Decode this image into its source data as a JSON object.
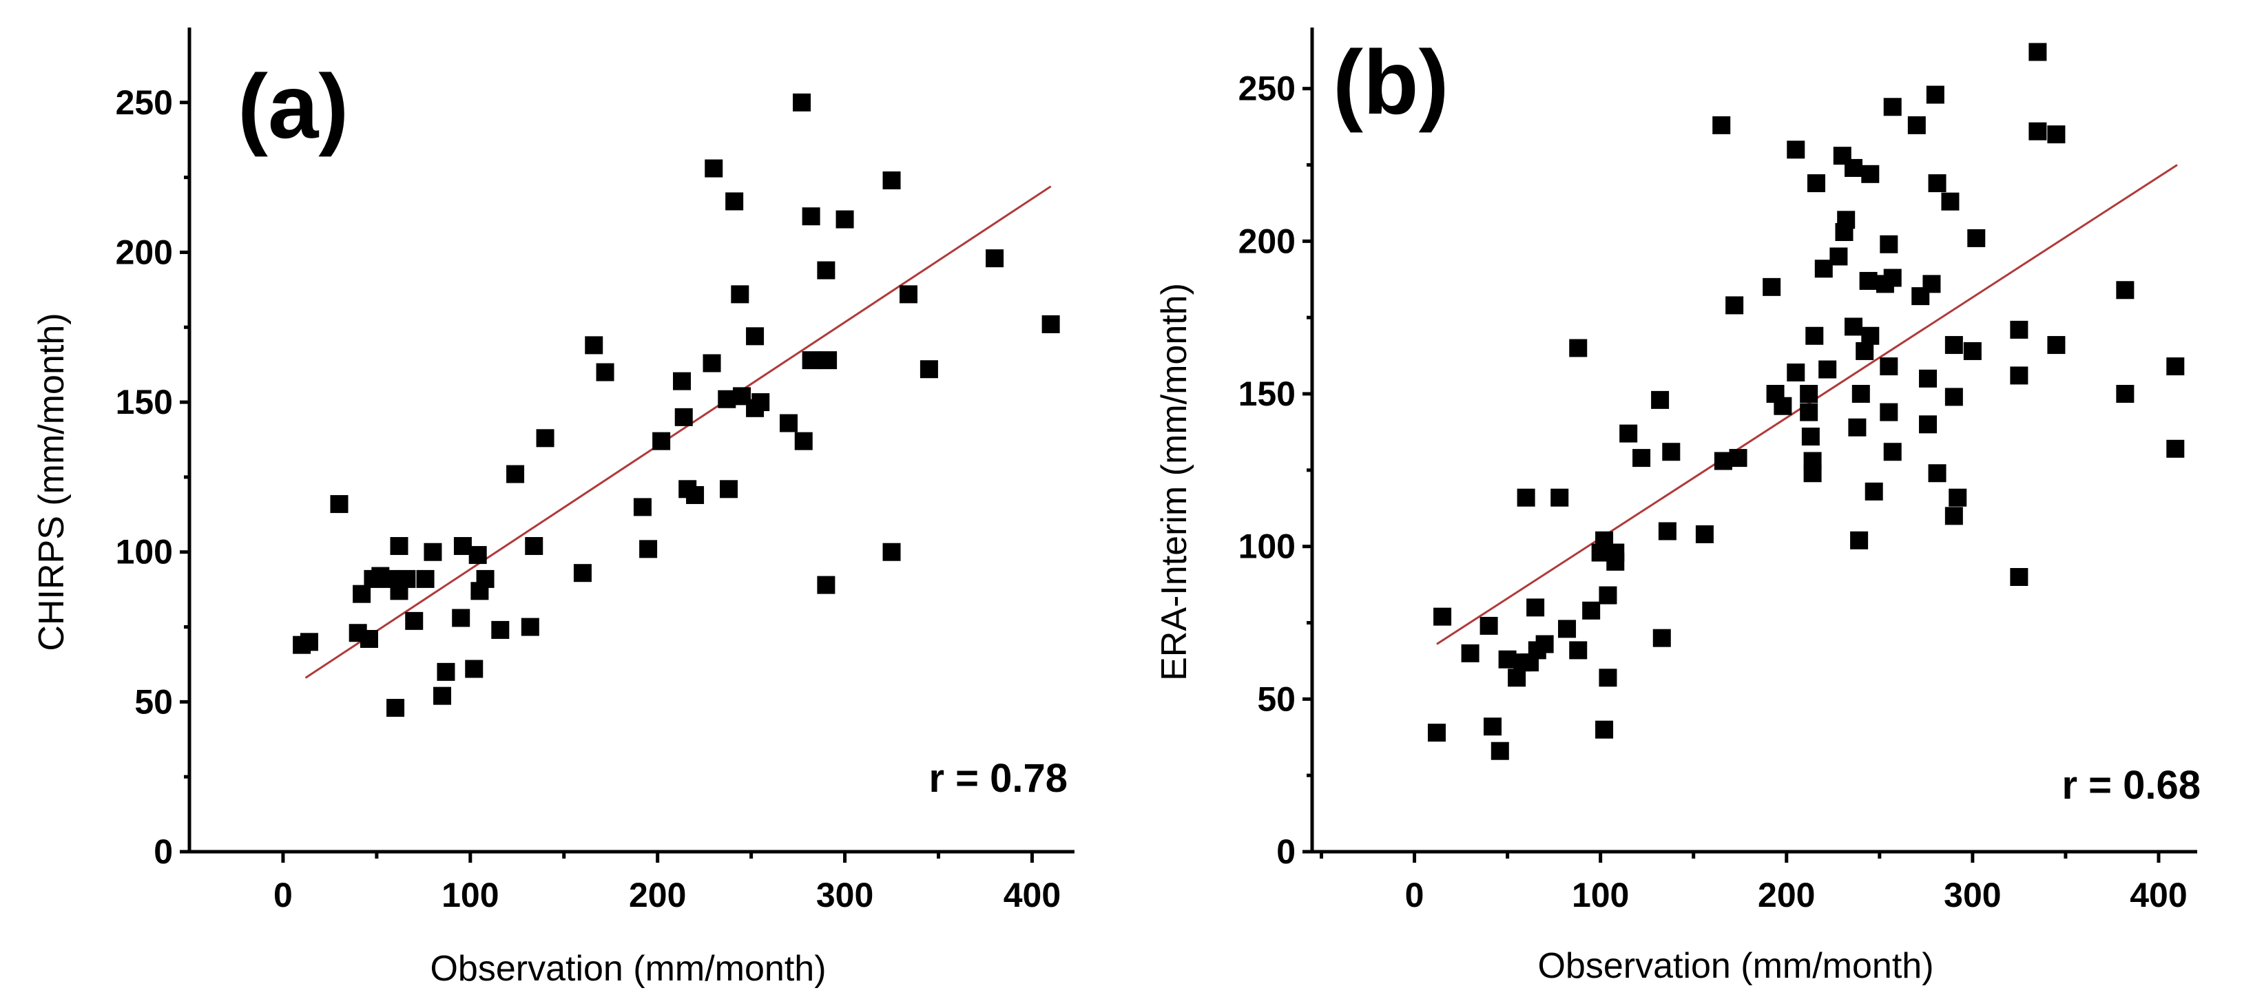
{
  "chart_data": [
    {
      "type": "scatter",
      "panel_label": "(a)",
      "xlabel": "Observation (mm/month)",
      "ylabel": "CHIRPS (mm/month)",
      "xlim": [
        -50,
        430
      ],
      "ylim": [
        0,
        275
      ],
      "x_ticks": [
        0,
        100,
        200,
        300,
        400
      ],
      "y_ticks": [
        0,
        50,
        100,
        150,
        200,
        250
      ],
      "annotation": "r = 0.78",
      "fit_line": {
        "x": [
          12,
          410
        ],
        "y": [
          58,
          222
        ]
      },
      "points": [
        [
          10,
          69
        ],
        [
          14,
          70
        ],
        [
          30,
          116
        ],
        [
          40,
          73
        ],
        [
          42,
          86
        ],
        [
          46,
          71
        ],
        [
          48,
          91
        ],
        [
          52,
          92
        ],
        [
          57,
          91
        ],
        [
          60,
          48
        ],
        [
          62,
          102
        ],
        [
          62,
          87
        ],
        [
          66,
          91
        ],
        [
          70,
          77
        ],
        [
          76,
          91
        ],
        [
          80,
          100
        ],
        [
          85,
          52
        ],
        [
          87,
          60
        ],
        [
          95,
          78
        ],
        [
          96,
          102
        ],
        [
          102,
          61
        ],
        [
          104,
          99
        ],
        [
          105,
          87
        ],
        [
          108,
          91
        ],
        [
          116,
          74
        ],
        [
          124,
          126
        ],
        [
          132,
          75
        ],
        [
          134,
          102
        ],
        [
          140,
          138
        ],
        [
          160,
          93
        ],
        [
          166,
          169
        ],
        [
          172,
          160
        ],
        [
          192,
          115
        ],
        [
          195,
          101
        ],
        [
          202,
          137
        ],
        [
          213,
          157
        ],
        [
          214,
          145
        ],
        [
          216,
          121
        ],
        [
          220,
          119
        ],
        [
          229,
          163
        ],
        [
          230,
          228
        ],
        [
          237,
          151
        ],
        [
          238,
          121
        ],
        [
          241,
          217
        ],
        [
          244,
          186
        ],
        [
          245,
          152
        ],
        [
          252,
          172
        ],
        [
          252,
          148
        ],
        [
          255,
          150
        ],
        [
          270,
          143
        ],
        [
          277,
          250
        ],
        [
          278,
          137
        ],
        [
          282,
          212
        ],
        [
          282,
          164
        ],
        [
          290,
          194
        ],
        [
          290,
          89
        ],
        [
          291,
          164
        ],
        [
          300,
          211
        ],
        [
          325,
          224
        ],
        [
          325,
          100
        ],
        [
          334,
          186
        ],
        [
          345,
          161
        ],
        [
          380,
          198
        ],
        [
          410,
          176
        ]
      ]
    },
    {
      "type": "scatter",
      "panel_label": "(b)",
      "xlabel": "Observation (mm/month)",
      "ylabel": "ERA-Interim (mm/month)",
      "xlim": [
        -55,
        430
      ],
      "ylim": [
        0,
        270
      ],
      "x_ticks": [
        0,
        100,
        200,
        300,
        400
      ],
      "y_ticks": [
        0,
        50,
        100,
        150,
        200,
        250
      ],
      "annotation": "r = 0.68",
      "fit_line": {
        "x": [
          12,
          410
        ],
        "y": [
          68,
          225
        ]
      },
      "points": [
        [
          12,
          39
        ],
        [
          15,
          77
        ],
        [
          30,
          65
        ],
        [
          40,
          74
        ],
        [
          42,
          41
        ],
        [
          46,
          33
        ],
        [
          50,
          63
        ],
        [
          55,
          57
        ],
        [
          58,
          62
        ],
        [
          60,
          116
        ],
        [
          62,
          62
        ],
        [
          65,
          80
        ],
        [
          66,
          66
        ],
        [
          70,
          68
        ],
        [
          78,
          116
        ],
        [
          82,
          73
        ],
        [
          88,
          66
        ],
        [
          88,
          165
        ],
        [
          95,
          79
        ],
        [
          100,
          98
        ],
        [
          102,
          40
        ],
        [
          102,
          102
        ],
        [
          104,
          84
        ],
        [
          104,
          57
        ],
        [
          108,
          95
        ],
        [
          108,
          98
        ],
        [
          115,
          137
        ],
        [
          122,
          129
        ],
        [
          132,
          148
        ],
        [
          133,
          70
        ],
        [
          136,
          105
        ],
        [
          138,
          131
        ],
        [
          156,
          104
        ],
        [
          165,
          238
        ],
        [
          166,
          128
        ],
        [
          172,
          179
        ],
        [
          174,
          129
        ],
        [
          192,
          185
        ],
        [
          194,
          150
        ],
        [
          198,
          146
        ],
        [
          205,
          230
        ],
        [
          205,
          157
        ],
        [
          212,
          144
        ],
        [
          212,
          150
        ],
        [
          213,
          136
        ],
        [
          214,
          124
        ],
        [
          214,
          128
        ],
        [
          215,
          169
        ],
        [
          216,
          219
        ],
        [
          220,
          191
        ],
        [
          222,
          158
        ],
        [
          228,
          195
        ],
        [
          230,
          228
        ],
        [
          231,
          203
        ],
        [
          232,
          207
        ],
        [
          236,
          224
        ],
        [
          236,
          172
        ],
        [
          238,
          139
        ],
        [
          239,
          102
        ],
        [
          240,
          150
        ],
        [
          242,
          164
        ],
        [
          244,
          187
        ],
        [
          245,
          222
        ],
        [
          245,
          169
        ],
        [
          247,
          118
        ],
        [
          253,
          186
        ],
        [
          255,
          199
        ],
        [
          255,
          159
        ],
        [
          255,
          144
        ],
        [
          257,
          188
        ],
        [
          257,
          244
        ],
        [
          257,
          131
        ],
        [
          270,
          238
        ],
        [
          272,
          182
        ],
        [
          276,
          155
        ],
        [
          276,
          140
        ],
        [
          278,
          186
        ],
        [
          280,
          248
        ],
        [
          281,
          219
        ],
        [
          281,
          124
        ],
        [
          288,
          213
        ],
        [
          290,
          166
        ],
        [
          290,
          149
        ],
        [
          290,
          110
        ],
        [
          292,
          116
        ],
        [
          300,
          164
        ],
        [
          302,
          201
        ],
        [
          325,
          171
        ],
        [
          325,
          156
        ],
        [
          325,
          90
        ],
        [
          335,
          262
        ],
        [
          335,
          236
        ],
        [
          345,
          166
        ],
        [
          345,
          235
        ],
        [
          382,
          150
        ],
        [
          382,
          184
        ],
        [
          409,
          159
        ],
        [
          409,
          132
        ]
      ]
    }
  ]
}
